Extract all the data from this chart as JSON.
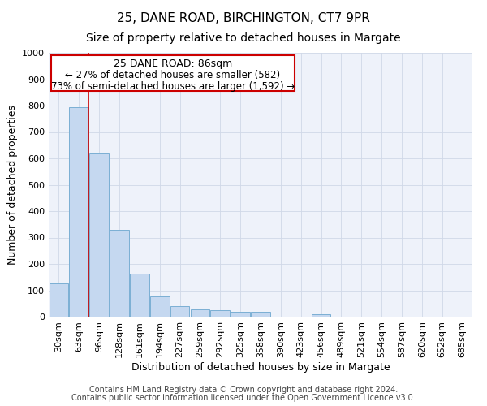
{
  "title1": "25, DANE ROAD, BIRCHINGTON, CT7 9PR",
  "title2": "Size of property relative to detached houses in Margate",
  "xlabel": "Distribution of detached houses by size in Margate",
  "ylabel": "Number of detached properties",
  "footer1": "Contains HM Land Registry data © Crown copyright and database right 2024.",
  "footer2": "Contains public sector information licensed under the Open Government Licence v3.0.",
  "annotation_line1": "25 DANE ROAD: 86sqm",
  "annotation_line2": "← 27% of detached houses are smaller (582)",
  "annotation_line3": "73% of semi-detached houses are larger (1,592) →",
  "categories": [
    "30sqm",
    "63sqm",
    "96sqm",
    "128sqm",
    "161sqm",
    "194sqm",
    "227sqm",
    "259sqm",
    "292sqm",
    "325sqm",
    "358sqm",
    "390sqm",
    "423sqm",
    "456sqm",
    "489sqm",
    "521sqm",
    "554sqm",
    "587sqm",
    "620sqm",
    "652sqm",
    "685sqm"
  ],
  "values": [
    125,
    795,
    620,
    328,
    162,
    78,
    40,
    28,
    26,
    17,
    17,
    0,
    0,
    10,
    0,
    0,
    0,
    0,
    0,
    0,
    0
  ],
  "bar_color": "#c5d8f0",
  "bar_edge_color": "#7bafd4",
  "highlight_line_color": "#cc0000",
  "annotation_box_color": "#cc0000",
  "ylim": [
    0,
    1000
  ],
  "yticks": [
    0,
    100,
    200,
    300,
    400,
    500,
    600,
    700,
    800,
    900,
    1000
  ],
  "grid_color": "#d0d8e8",
  "bg_color": "#eef2fa",
  "title1_fontsize": 11,
  "title2_fontsize": 10,
  "xlabel_fontsize": 9,
  "ylabel_fontsize": 9,
  "tick_fontsize": 8,
  "footer_fontsize": 7,
  "annot_fontsize1": 9,
  "annot_fontsize2": 8.5
}
